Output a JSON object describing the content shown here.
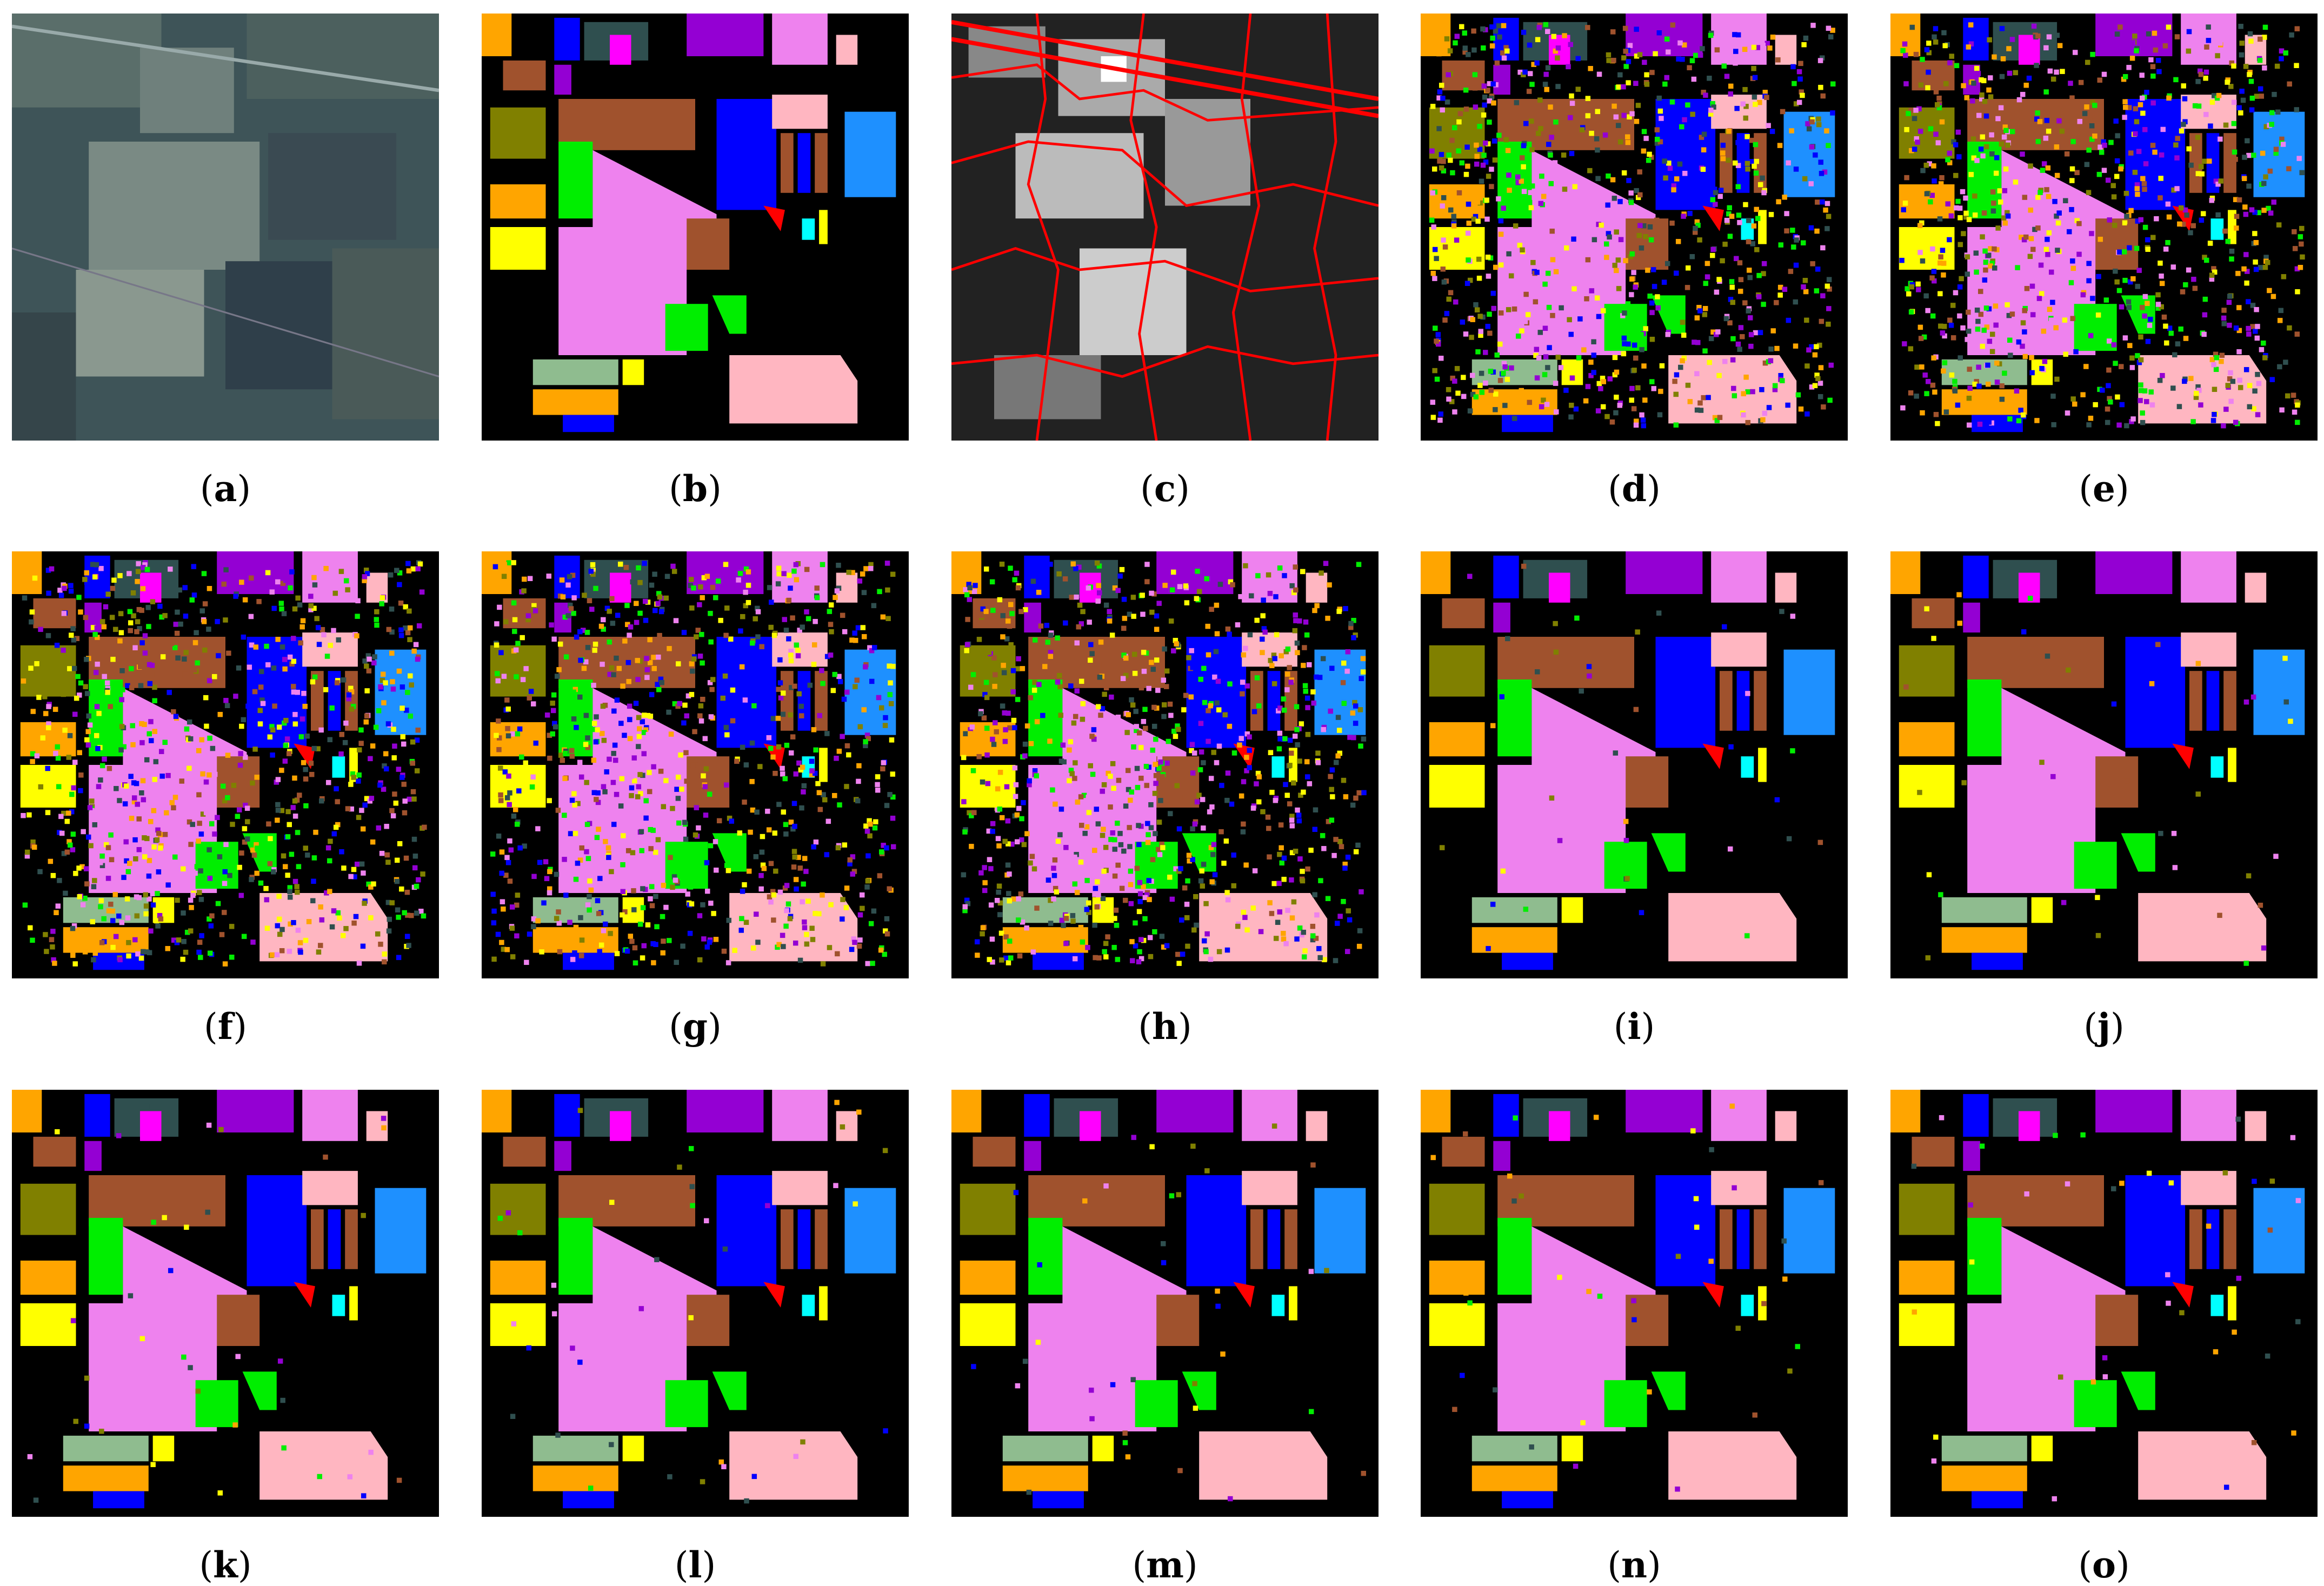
{
  "panels": [
    {
      "id": "a",
      "label": "a",
      "kind": "rgb"
    },
    {
      "id": "b",
      "label": "b",
      "kind": "ground-truth"
    },
    {
      "id": "c",
      "label": "c",
      "kind": "superpixel"
    },
    {
      "id": "d",
      "label": "d",
      "kind": "noisy-map"
    },
    {
      "id": "e",
      "label": "e",
      "kind": "noisy-map"
    },
    {
      "id": "f",
      "label": "f",
      "kind": "noisy-map"
    },
    {
      "id": "g",
      "label": "g",
      "kind": "noisy-map"
    },
    {
      "id": "h",
      "label": "h",
      "kind": "noisy-map"
    },
    {
      "id": "i",
      "label": "i",
      "kind": "clean-map"
    },
    {
      "id": "j",
      "label": "j",
      "kind": "clean-map"
    },
    {
      "id": "k",
      "label": "k",
      "kind": "clean-map"
    },
    {
      "id": "l",
      "label": "l",
      "kind": "clean-map"
    },
    {
      "id": "m",
      "label": "m",
      "kind": "clean-map"
    },
    {
      "id": "n",
      "label": "n",
      "kind": "clean-map"
    },
    {
      "id": "o",
      "label": "o",
      "kind": "clean-map"
    }
  ],
  "colors": {
    "background": "#000000",
    "orange": "#ffa500",
    "brown": "#a0522d",
    "violet": "#ee82ee",
    "blue": "#0000ff",
    "green": "#00ee00",
    "yellow": "#ffff00",
    "pink": "#ffb6c1",
    "purple": "#9400d3",
    "darkslate": "#2f4f4f",
    "olive": "#808000",
    "sage": "#8fbc8f",
    "skyblue": "#1e90ff",
    "magenta": "#ff00ff",
    "red": "#ff0000",
    "cyan": "#00ffff",
    "superpixel-boundary": "#ff0000"
  }
}
